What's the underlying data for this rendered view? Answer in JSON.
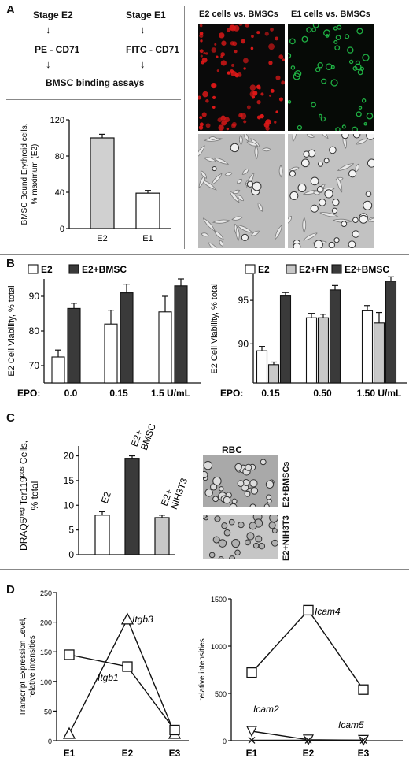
{
  "panels": {
    "A": {
      "letter": "A",
      "flow": {
        "left_stage": "Stage E2",
        "right_stage": "Stage E1",
        "left_label": "PE - CD71",
        "right_label": "FITC - CD71",
        "assay": "BMSC binding assays",
        "arrow": "↓"
      },
      "micro_titles": [
        "E2 cells vs. BMSCs",
        "E1 cells vs. BMSCs"
      ]
    },
    "B": {
      "letter": "B"
    },
    "C": {
      "letter": "C",
      "image_labels": {
        "rbc": "RBC",
        "top": "E2+BMSCs",
        "bottom": "E2+NIH3T3"
      }
    },
    "D": {
      "letter": "D"
    }
  },
  "colors": {
    "dark_bar": "#3a3a3a",
    "light_bar": "#c8c8c8",
    "white_bar": "#ffffff",
    "red_cells": "#e01818",
    "green_cells": "#22c24a",
    "micro_bg_dark": "#0a0a0a",
    "micro_bg_gray": "#bdbdbd"
  },
  "chart_data": [
    {
      "id": "A-bar",
      "type": "bar",
      "ylabel": "BMSC Bound Erythroid cells, % maximum (E2)",
      "categories": [
        "E2",
        "E1"
      ],
      "values": [
        100,
        39
      ],
      "errors": [
        4,
        3
      ],
      "colors": [
        "#d0d0d0",
        "#ffffff"
      ],
      "ylim": [
        0,
        120
      ],
      "yticks": [
        "0",
        "40",
        "80",
        "120"
      ]
    },
    {
      "id": "B-left",
      "type": "bar",
      "ylabel": "E2 Cell Viability, % total",
      "legend": [
        "E2",
        "E2+BMSC"
      ],
      "x_prefix": "EPO:",
      "categories": [
        "0.0",
        "0.15",
        "1.5 U/mL"
      ],
      "series": [
        {
          "name": "E2",
          "values": [
            72.5,
            82,
            85.5
          ],
          "errors": [
            2,
            4,
            4.5
          ],
          "color": "#ffffff"
        },
        {
          "name": "E2+BMSC",
          "values": [
            86.5,
            91,
            93
          ],
          "errors": [
            1.5,
            2.5,
            2
          ],
          "color": "#3a3a3a"
        }
      ],
      "ylim": [
        65,
        95
      ],
      "yticks": [
        "70",
        "80",
        "90"
      ]
    },
    {
      "id": "B-right",
      "type": "bar",
      "ylabel": "E2 Cell Viability, % total",
      "legend": [
        "E2",
        "E2+FN",
        "E2+BMSC"
      ],
      "x_prefix": "EPO:",
      "categories": [
        "0.15",
        "0.50",
        "1.50 U/mL"
      ],
      "series": [
        {
          "name": "E2",
          "values": [
            89.2,
            93,
            93.8
          ],
          "errors": [
            0.5,
            0.5,
            0.6
          ],
          "color": "#ffffff"
        },
        {
          "name": "E2+FN",
          "values": [
            87.6,
            93,
            92.4
          ],
          "errors": [
            0.3,
            0.4,
            1.2
          ],
          "color": "#c8c8c8"
        },
        {
          "name": "E2+BMSC",
          "values": [
            95.5,
            96.2,
            97.2
          ],
          "errors": [
            0.4,
            0.5,
            0.5
          ],
          "color": "#3a3a3a"
        }
      ],
      "ylim": [
        85.5,
        98
      ],
      "yticks": [
        "90",
        "95"
      ]
    },
    {
      "id": "C-bar",
      "type": "bar",
      "ylabel_parts": [
        "DRAQ5",
        "neg",
        " Ter119",
        "pos",
        " Cells,",
        "% total"
      ],
      "categories": [
        "E2",
        "E2+ BMSC",
        "E2+ NIH3T3"
      ],
      "category_lines": [
        [
          "E2"
        ],
        [
          "E2+",
          "BMSC"
        ],
        [
          "E2+",
          "NIH3T3"
        ]
      ],
      "values": [
        8,
        19.5,
        7.5
      ],
      "errors": [
        0.7,
        0.5,
        0.5
      ],
      "colors": [
        "#ffffff",
        "#3a3a3a",
        "#c8c8c8"
      ],
      "ylim": [
        0,
        22
      ],
      "yticks": [
        "0",
        "5",
        "10",
        "15",
        "20"
      ]
    },
    {
      "id": "D-left",
      "type": "line",
      "ylabel": "Transcript Expression Level, relative intensities",
      "categories": [
        "E1",
        "E2",
        "E3"
      ],
      "series": [
        {
          "name": "Itgb3",
          "values": [
            12,
            205,
            12
          ],
          "marker": "triangle"
        },
        {
          "name": "Itgb1",
          "values": [
            145,
            125,
            18
          ],
          "marker": "square"
        }
      ],
      "ylim": [
        0,
        250
      ],
      "yticks": [
        "0",
        "50",
        "100",
        "150",
        "200",
        "250"
      ]
    },
    {
      "id": "D-right",
      "type": "line",
      "ylabel": "Transcript Expression Level, relative intensities",
      "categories": [
        "E1",
        "E2",
        "E3"
      ],
      "series": [
        {
          "name": "Icam4",
          "values": [
            720,
            1380,
            540
          ],
          "marker": "square"
        },
        {
          "name": "Icam2",
          "values": [
            100,
            10,
            5
          ],
          "marker": "triangle-down"
        },
        {
          "name": "Icam5",
          "values": [
            5,
            5,
            5
          ],
          "marker": "x"
        }
      ],
      "ylim": [
        0,
        1500
      ],
      "yticks": [
        "0",
        "500",
        "1000",
        "1500"
      ]
    }
  ]
}
